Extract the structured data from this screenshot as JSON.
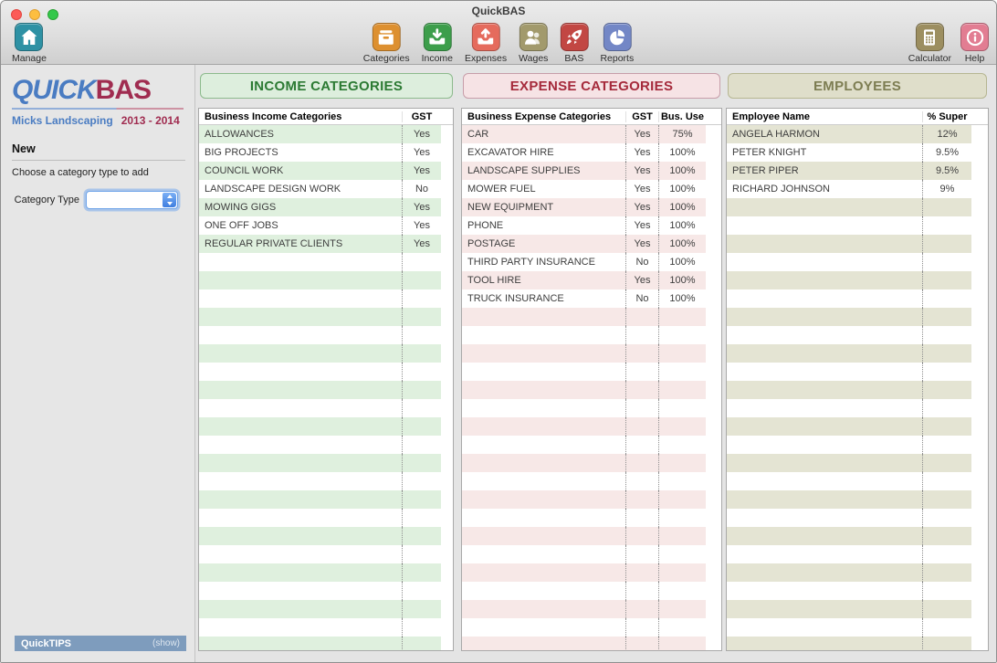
{
  "window": {
    "title": "QuickBAS"
  },
  "toolbar": {
    "left": [
      {
        "name": "manage",
        "label": "Manage",
        "icon": "home-icon",
        "color": "#2e91a4"
      }
    ],
    "center": [
      {
        "name": "categories",
        "label": "Categories",
        "icon": "drawer-icon",
        "color": "#dd9030"
      },
      {
        "name": "income",
        "label": "Income",
        "icon": "tray-arrow-down-icon",
        "color": "#3d9e4b"
      },
      {
        "name": "expenses",
        "label": "Expenses",
        "icon": "tray-arrow-up-icon",
        "color": "#e56b5d"
      },
      {
        "name": "wages",
        "label": "Wages",
        "icon": "people-icon",
        "color": "#a29a6c"
      },
      {
        "name": "bas",
        "label": "BAS",
        "icon": "rocket-icon",
        "color": "#c24743"
      },
      {
        "name": "reports",
        "label": "Reports",
        "icon": "pie-chart-icon",
        "color": "#7387c6"
      }
    ],
    "right": [
      {
        "name": "calculator",
        "label": "Calculator",
        "icon": "calculator-icon",
        "color": "#9c8e60"
      },
      {
        "name": "help",
        "label": "Help",
        "icon": "info-icon",
        "color": "#e27d92"
      }
    ]
  },
  "sidebar": {
    "logo": {
      "part1": "QUICK",
      "part2": "BAS",
      "color1": "#4a7cc2",
      "color2": "#a02c50"
    },
    "business_name": "Micks Landscaping",
    "year_range": "2013 - 2014",
    "new_section": {
      "heading": "New",
      "instruction": "Choose a category type to add",
      "field_label": "Category Type",
      "field_value": ""
    },
    "quicktips": {
      "label": "QuickTIPS",
      "action": "(show)"
    }
  },
  "panels": {
    "income": {
      "title": "INCOME CATEGORIES",
      "theme": {
        "header_bg": "#ddeedd",
        "header_border": "#8cba8c",
        "header_text": "#2c7a33",
        "stripe": "#dff0de"
      },
      "columns": [
        "Business Income Categories",
        "GST"
      ],
      "rows": [
        {
          "name": "ALLOWANCES",
          "gst": "Yes"
        },
        {
          "name": "BIG PROJECTS",
          "gst": "Yes"
        },
        {
          "name": "COUNCIL WORK",
          "gst": "Yes"
        },
        {
          "name": "LANDSCAPE DESIGN WORK",
          "gst": "No"
        },
        {
          "name": "MOWING GIGS",
          "gst": "Yes"
        },
        {
          "name": "ONE OFF JOBS",
          "gst": "Yes"
        },
        {
          "name": "REGULAR PRIVATE CLIENTS",
          "gst": "Yes"
        }
      ]
    },
    "expense": {
      "title": "EXPENSE CATEGORIES",
      "theme": {
        "header_bg": "#f6e3e5",
        "header_border": "#c79da9",
        "header_text": "#a52a3b",
        "stripe": "#f7e8e7"
      },
      "columns": [
        "Business Expense Categories",
        "GST",
        "Bus. Use"
      ],
      "rows": [
        {
          "name": "CAR",
          "gst": "Yes",
          "bus_use": "75%"
        },
        {
          "name": "EXCAVATOR HIRE",
          "gst": "Yes",
          "bus_use": "100%"
        },
        {
          "name": "LANDSCAPE SUPPLIES",
          "gst": "Yes",
          "bus_use": "100%"
        },
        {
          "name": "MOWER FUEL",
          "gst": "Yes",
          "bus_use": "100%"
        },
        {
          "name": "NEW EQUIPMENT",
          "gst": "Yes",
          "bus_use": "100%"
        },
        {
          "name": "PHONE",
          "gst": "Yes",
          "bus_use": "100%"
        },
        {
          "name": "POSTAGE",
          "gst": "Yes",
          "bus_use": "100%"
        },
        {
          "name": "THIRD PARTY INSURANCE",
          "gst": "No",
          "bus_use": "100%"
        },
        {
          "name": "TOOL HIRE",
          "gst": "Yes",
          "bus_use": "100%"
        },
        {
          "name": "TRUCK INSURANCE",
          "gst": "No",
          "bus_use": "100%"
        }
      ]
    },
    "employees": {
      "title": "EMPLOYEES",
      "theme": {
        "header_bg": "#dfdeca",
        "header_border": "#b6b692",
        "header_text": "#7d7d52",
        "stripe": "#e4e4d3"
      },
      "columns": [
        "Employee Name",
        "% Super"
      ],
      "rows": [
        {
          "name": "ANGELA HARMON",
          "super": "12%"
        },
        {
          "name": "PETER KNIGHT",
          "super": "9.5%"
        },
        {
          "name": "PETER PIPER",
          "super": "9.5%"
        },
        {
          "name": "RICHARD JOHNSON",
          "super": "9%"
        }
      ]
    }
  }
}
